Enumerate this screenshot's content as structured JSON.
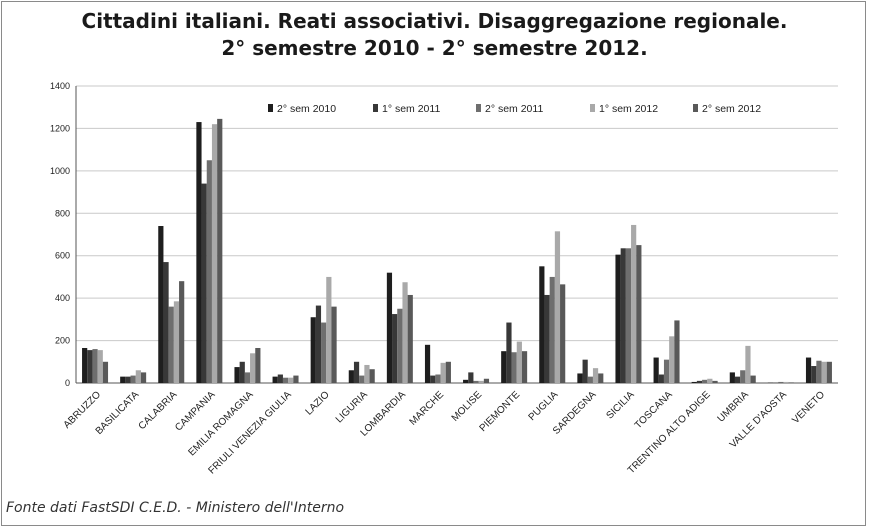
{
  "chart_data": {
    "type": "bar",
    "title_line1": "Cittadini italiani. Reati associativi. Disaggregazione regionale.",
    "title_line2": "2° semestre 2010 - 2° semestre 2012.",
    "xlabel": "",
    "ylabel": "",
    "ylim": [
      0,
      1400
    ],
    "yticks": [
      0,
      200,
      400,
      600,
      800,
      1000,
      1200,
      1400
    ],
    "grid": true,
    "legend_position": "top",
    "categories": [
      "ABRUZZO",
      "BASILICATA",
      "CALABRIA",
      "CAMPANIA",
      "EMILIA ROMAGNA",
      "FRIULI VENEZIA GIULIA",
      "LAZIO",
      "LIGURIA",
      "LOMBARDIA",
      "MARCHE",
      "MOLISE",
      "PIEMONTE",
      "PUGLIA",
      "SARDEGNA",
      "SICILIA",
      "TOSCANA",
      "TRENTINO ALTO ADIGE",
      "UMBRIA",
      "VALLE D'AOSTA",
      "VENETO"
    ],
    "series": [
      {
        "name": "2° sem 2010",
        "color": "#1e1e1e",
        "values": [
          165,
          30,
          740,
          1230,
          75,
          30,
          310,
          60,
          520,
          180,
          15,
          150,
          550,
          45,
          605,
          120,
          5,
          50,
          2,
          120
        ]
      },
      {
        "name": "1° sem 2011",
        "color": "#383838",
        "values": [
          155,
          30,
          570,
          940,
          100,
          40,
          365,
          100,
          325,
          35,
          50,
          285,
          415,
          110,
          635,
          40,
          10,
          30,
          2,
          80
        ]
      },
      {
        "name": "2° sem 2011",
        "color": "#6e6e6e",
        "values": [
          160,
          35,
          360,
          1050,
          50,
          25,
          285,
          35,
          350,
          40,
          10,
          145,
          500,
          30,
          635,
          110,
          15,
          60,
          5,
          105
        ]
      },
      {
        "name": "1° sem 2012",
        "color": "#a9a9a9",
        "values": [
          155,
          60,
          385,
          1220,
          140,
          25,
          500,
          85,
          475,
          95,
          10,
          195,
          715,
          70,
          745,
          220,
          20,
          175,
          5,
          100
        ]
      },
      {
        "name": "2° sem 2012",
        "color": "#595959",
        "values": [
          100,
          50,
          480,
          1245,
          165,
          35,
          360,
          65,
          415,
          100,
          20,
          150,
          465,
          45,
          650,
          295,
          10,
          35,
          3,
          100
        ]
      }
    ]
  },
  "source": "Fonte dati FastSDI C.E.D. - Ministero dell'Interno"
}
